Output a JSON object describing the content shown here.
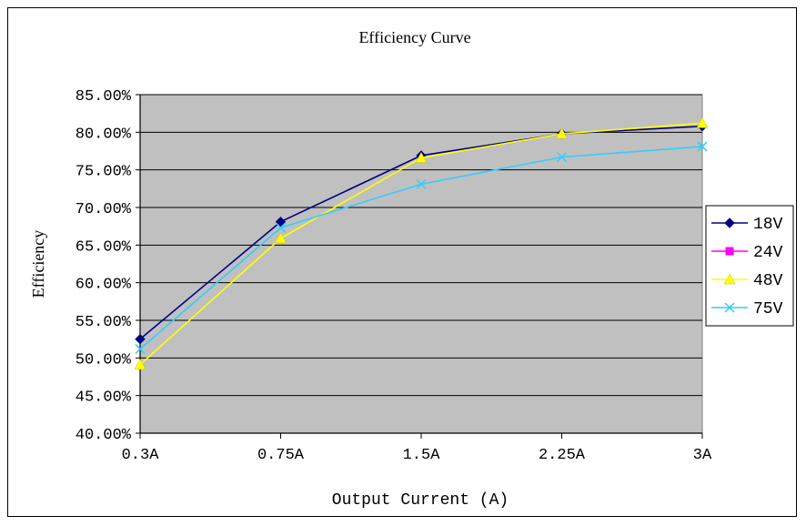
{
  "chart_data": {
    "type": "line",
    "title": "Efficiency Curve",
    "xlabel": "Output Current (A)",
    "ylabel": "Efficiency",
    "categories": [
      "0.3A",
      "0.75A",
      "1.5A",
      "2.25A",
      "3A"
    ],
    "ylim": [
      40,
      85
    ],
    "yticks": [
      "40.00%",
      "45.00%",
      "50.00%",
      "55.00%",
      "60.00%",
      "65.00%",
      "70.00%",
      "75.00%",
      "80.00%",
      "85.00%"
    ],
    "grid": true,
    "legend_position": "right",
    "plot_background": "#c0c0c0",
    "series": [
      {
        "name": "18V",
        "values": [
          52.5,
          68.1,
          76.9,
          79.8,
          80.8
        ],
        "color": "#000080",
        "marker": "diamond"
      },
      {
        "name": "24V",
        "values": [
          null,
          null,
          null,
          null,
          null
        ],
        "color": "#ff00ff",
        "marker": "square"
      },
      {
        "name": "48V",
        "values": [
          49.1,
          65.9,
          76.6,
          79.8,
          81.2
        ],
        "color": "#ffff00",
        "marker": "triangle"
      },
      {
        "name": "75V",
        "values": [
          51.2,
          67.3,
          73.1,
          76.7,
          78.1
        ],
        "color": "#33ccff",
        "marker": "x"
      }
    ]
  }
}
